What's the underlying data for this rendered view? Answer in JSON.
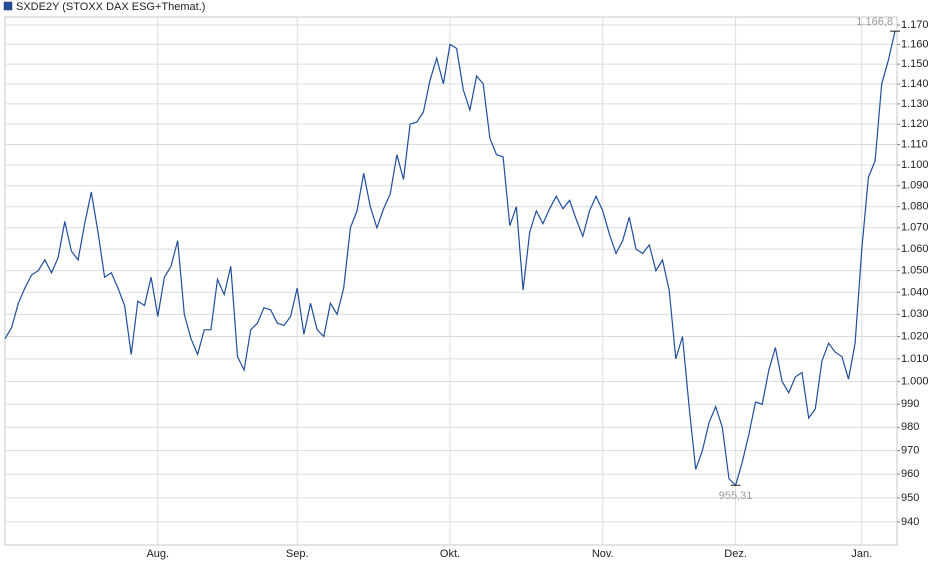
{
  "chart_data": {
    "type": "line",
    "log": true,
    "grid": true,
    "legend": "top-left",
    "categories": [
      null,
      null,
      null,
      null,
      null,
      null,
      null,
      null,
      null,
      null,
      null,
      null,
      null,
      null,
      null,
      null,
      null,
      null,
      null,
      null,
      null,
      null,
      null,
      "Aug.",
      null,
      null,
      null,
      null,
      null,
      null,
      null,
      null,
      null,
      null,
      null,
      null,
      null,
      null,
      null,
      null,
      null,
      null,
      null,
      null,
      "Sep.",
      null,
      null,
      null,
      null,
      null,
      null,
      null,
      null,
      null,
      null,
      null,
      null,
      null,
      null,
      null,
      null,
      null,
      null,
      null,
      null,
      null,
      null,
      "Okt.",
      null,
      null,
      null,
      null,
      null,
      null,
      null,
      null,
      null,
      null,
      null,
      null,
      null,
      null,
      null,
      null,
      null,
      null,
      null,
      null,
      null,
      null,
      "Nov.",
      null,
      null,
      null,
      null,
      null,
      null,
      null,
      null,
      null,
      null,
      null,
      null,
      null,
      null,
      null,
      null,
      null,
      null,
      null,
      "Dez.",
      null,
      null,
      null,
      null,
      null,
      null,
      null,
      null,
      null,
      null,
      null,
      null,
      null,
      null,
      null,
      null,
      null,
      null,
      "Jan.",
      null,
      null,
      null,
      null,
      null
    ],
    "series": [
      {
        "name": "SXDE2Y (STOXX DAX ESG+Themat.)",
        "color": "#1f4e9c",
        "values": [
          1019,
          1024,
          1035,
          1042,
          1048,
          1050,
          1055,
          1049,
          1056,
          1073,
          1059,
          1055,
          1072,
          1087,
          1068,
          1047,
          1049,
          1042,
          1034,
          1012,
          1036,
          1034,
          1047,
          1029,
          1047,
          1052,
          1064,
          1030,
          1019,
          1012,
          1023,
          1023,
          1046,
          1039,
          1052,
          1011,
          1005,
          1023,
          1026,
          1033,
          1032,
          1026,
          1025,
          1029,
          1042,
          1021,
          1035,
          1023,
          1020,
          1035,
          1030,
          1042,
          1070,
          1078,
          1096,
          1080,
          1070,
          1079,
          1086,
          1105,
          1093,
          1120,
          1121,
          1126,
          1142,
          1153,
          1140,
          1160,
          1158,
          1137,
          1127,
          1144,
          1140,
          1113,
          1105,
          1104,
          1071,
          1080,
          1041,
          1068,
          1078,
          1072,
          1079,
          1085,
          1079,
          1083,
          1074,
          1066,
          1078,
          1085,
          1078,
          1067,
          1058,
          1064,
          1075,
          1060,
          1058,
          1062,
          1050,
          1055,
          1041,
          1010,
          1020,
          989,
          962,
          970,
          982,
          989,
          980,
          958,
          955.31,
          965,
          977,
          991,
          990,
          1005,
          1015,
          1000,
          995,
          1002,
          1004,
          984,
          988,
          1009,
          1017,
          1013,
          1011,
          1001,
          1017,
          1060,
          1094,
          1102,
          1140,
          1152,
          1166.8
        ],
        "value_labels": [
          null,
          null,
          null,
          null,
          null,
          null,
          null,
          null,
          null,
          null,
          null,
          null,
          null,
          null,
          null,
          null,
          null,
          null,
          null,
          null,
          null,
          null,
          null,
          null,
          null,
          null,
          null,
          null,
          null,
          null,
          null,
          null,
          null,
          null,
          null,
          null,
          null,
          null,
          null,
          null,
          null,
          null,
          null,
          null,
          null,
          null,
          null,
          null,
          null,
          null,
          null,
          null,
          null,
          null,
          null,
          null,
          null,
          null,
          null,
          null,
          null,
          null,
          null,
          null,
          null,
          null,
          null,
          null,
          null,
          null,
          null,
          null,
          null,
          null,
          null,
          null,
          null,
          null,
          null,
          null,
          null,
          null,
          null,
          null,
          null,
          null,
          null,
          null,
          null,
          null,
          null,
          null,
          null,
          null,
          null,
          null,
          null,
          null,
          null,
          null,
          null,
          null,
          null,
          null,
          null,
          null,
          null,
          null,
          null,
          null,
          "955,31",
          null,
          null,
          null,
          null,
          null,
          null,
          null,
          null,
          null,
          null,
          null,
          null,
          null,
          null,
          null,
          null,
          null,
          null,
          null,
          null,
          null,
          null,
          null,
          "1.166,8"
        ]
      }
    ],
    "ylim": [
      930.5,
      1174.1
    ],
    "yticks": [
      940,
      950,
      960,
      970,
      980,
      990,
      {
        "value": 1000,
        "label": "1.000"
      },
      {
        "value": 1010,
        "label": "1.010"
      },
      {
        "value": 1020,
        "label": "1.020"
      },
      {
        "value": 1030,
        "label": "1.030"
      },
      {
        "value": 1040,
        "label": "1.040"
      },
      {
        "value": 1050,
        "label": "1.050"
      },
      {
        "value": 1060,
        "label": "1.060"
      },
      {
        "value": 1070,
        "label": "1.070"
      },
      {
        "value": 1080,
        "label": "1.080"
      },
      {
        "value": 1090,
        "label": "1.090"
      },
      {
        "value": 1100,
        "label": "1.100"
      },
      {
        "value": 1110,
        "label": "1.110"
      },
      {
        "value": 1120,
        "label": "1.120"
      },
      {
        "value": 1130,
        "label": "1.130"
      },
      {
        "value": 1140,
        "label": "1.140"
      },
      {
        "value": 1150,
        "label": "1.150"
      },
      {
        "value": 1160,
        "label": "1.160"
      },
      {
        "value": 1170,
        "label": "1.170"
      }
    ]
  }
}
